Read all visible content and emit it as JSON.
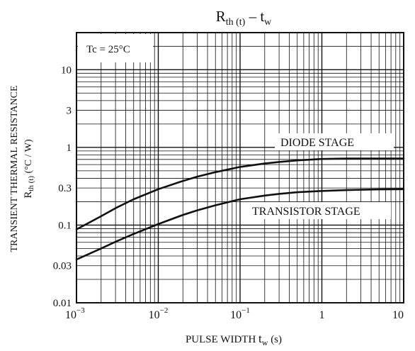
{
  "chart_data": {
    "type": "line",
    "title": {
      "main": "R",
      "main_sub": "th (t)",
      "dash": "–",
      "var": "t",
      "var_sub": "w"
    },
    "condition": "Tc = 25°C",
    "xlabel": {
      "text": "PULSE WIDTH",
      "var": "t",
      "var_sub": "w",
      "unit": "(s)"
    },
    "ylabel": {
      "line1": "TRANSIENT THERMAL RESISTANCE",
      "sym": "R",
      "sym_sub": "th (t)",
      "unit": "(°C / W)"
    },
    "x_scale": "log",
    "y_scale": "log",
    "xlim": [
      0.001,
      10
    ],
    "ylim": [
      0.01,
      30
    ],
    "grid": true,
    "x_ticks": [
      {
        "value": 0.001,
        "base": "10",
        "exp": "−3"
      },
      {
        "value": 0.01,
        "base": "10",
        "exp": "−2"
      },
      {
        "value": 0.1,
        "base": "10",
        "exp": "−1"
      },
      {
        "value": 1,
        "base": "1",
        "exp": ""
      },
      {
        "value": 10,
        "base": "10",
        "exp": ""
      }
    ],
    "y_ticks": [
      {
        "value": 0.01,
        "label": "0.01"
      },
      {
        "value": 0.03,
        "label": "0.03"
      },
      {
        "value": 0.1,
        "label": "0.1"
      },
      {
        "value": 0.3,
        "label": "0.3"
      },
      {
        "value": 1,
        "label": "1"
      },
      {
        "value": 3,
        "label": "3"
      },
      {
        "value": 10,
        "label": "10"
      }
    ],
    "series": [
      {
        "name": "DIODE STAGE",
        "color": "#111111",
        "x": [
          0.001,
          0.002,
          0.003,
          0.005,
          0.01,
          0.02,
          0.03,
          0.05,
          0.1,
          0.2,
          0.3,
          0.5,
          1,
          2,
          3,
          5,
          10
        ],
        "y": [
          0.088,
          0.13,
          0.165,
          0.215,
          0.29,
          0.37,
          0.42,
          0.48,
          0.56,
          0.62,
          0.65,
          0.68,
          0.71,
          0.72,
          0.72,
          0.72,
          0.72
        ]
      },
      {
        "name": "TRANSISTOR STAGE",
        "color": "#111111",
        "x": [
          0.001,
          0.002,
          0.003,
          0.005,
          0.01,
          0.02,
          0.03,
          0.05,
          0.1,
          0.2,
          0.3,
          0.5,
          1,
          2,
          3,
          5,
          10
        ],
        "y": [
          0.036,
          0.05,
          0.061,
          0.077,
          0.103,
          0.135,
          0.155,
          0.18,
          0.215,
          0.24,
          0.252,
          0.265,
          0.275,
          0.282,
          0.285,
          0.288,
          0.29
        ]
      }
    ]
  }
}
